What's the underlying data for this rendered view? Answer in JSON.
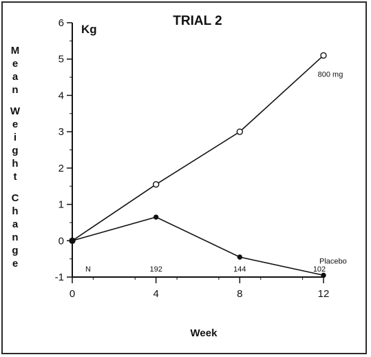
{
  "chart_data": {
    "type": "line",
    "title": "TRIAL 2",
    "unit": "Kg",
    "xlabel": "Week",
    "ylabel": "Mean Weight Change",
    "x": [
      0,
      4,
      8,
      12
    ],
    "xlim": [
      0,
      12
    ],
    "ylim": [
      -1,
      6
    ],
    "yticks": [
      -1,
      0,
      1,
      2,
      3,
      4,
      5,
      6
    ],
    "xticks": [
      0,
      4,
      8,
      12
    ],
    "grid": false,
    "series": [
      {
        "name": "800 mg",
        "marker": "open-circle",
        "values": [
          0,
          1.55,
          3.0,
          5.1
        ]
      },
      {
        "name": "Placebo",
        "marker": "filled-circle",
        "values": [
          0,
          0.65,
          -0.45,
          -0.95
        ]
      }
    ],
    "n_row": {
      "label": "N",
      "values": [
        "192",
        "144",
        "102"
      ]
    }
  }
}
